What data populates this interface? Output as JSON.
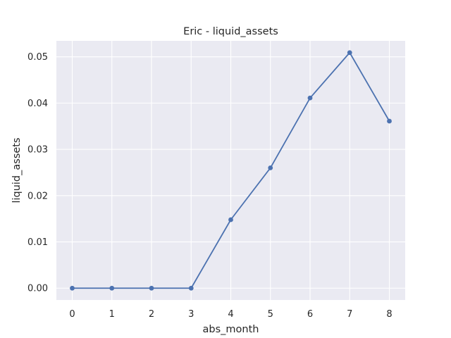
{
  "chart_data": {
    "type": "line",
    "title": "Eric - liquid_assets",
    "xlabel": "abs_month",
    "ylabel": "liquid_assets",
    "x": [
      0,
      1,
      2,
      3,
      4,
      5,
      6,
      7,
      8
    ],
    "series": [
      {
        "values": [
          0.0,
          0.0,
          0.0,
          0.0,
          0.0148,
          0.026,
          0.0411,
          0.0509,
          0.0361
        ],
        "color": "#4c72b0",
        "marker": "circle"
      }
    ],
    "xlim": [
      -0.4,
      8.4
    ],
    "ylim": [
      -0.00255,
      0.05345
    ],
    "xticks": [
      0,
      1,
      2,
      3,
      4,
      5,
      6,
      7,
      8
    ],
    "yticks": [
      0.0,
      0.01,
      0.02,
      0.03,
      0.04,
      0.05
    ],
    "ytick_labels": [
      "0.00",
      "0.01",
      "0.02",
      "0.03",
      "0.04",
      "0.05"
    ],
    "grid": true,
    "background": "#eaeaf2",
    "grid_color": "#ffffff"
  }
}
